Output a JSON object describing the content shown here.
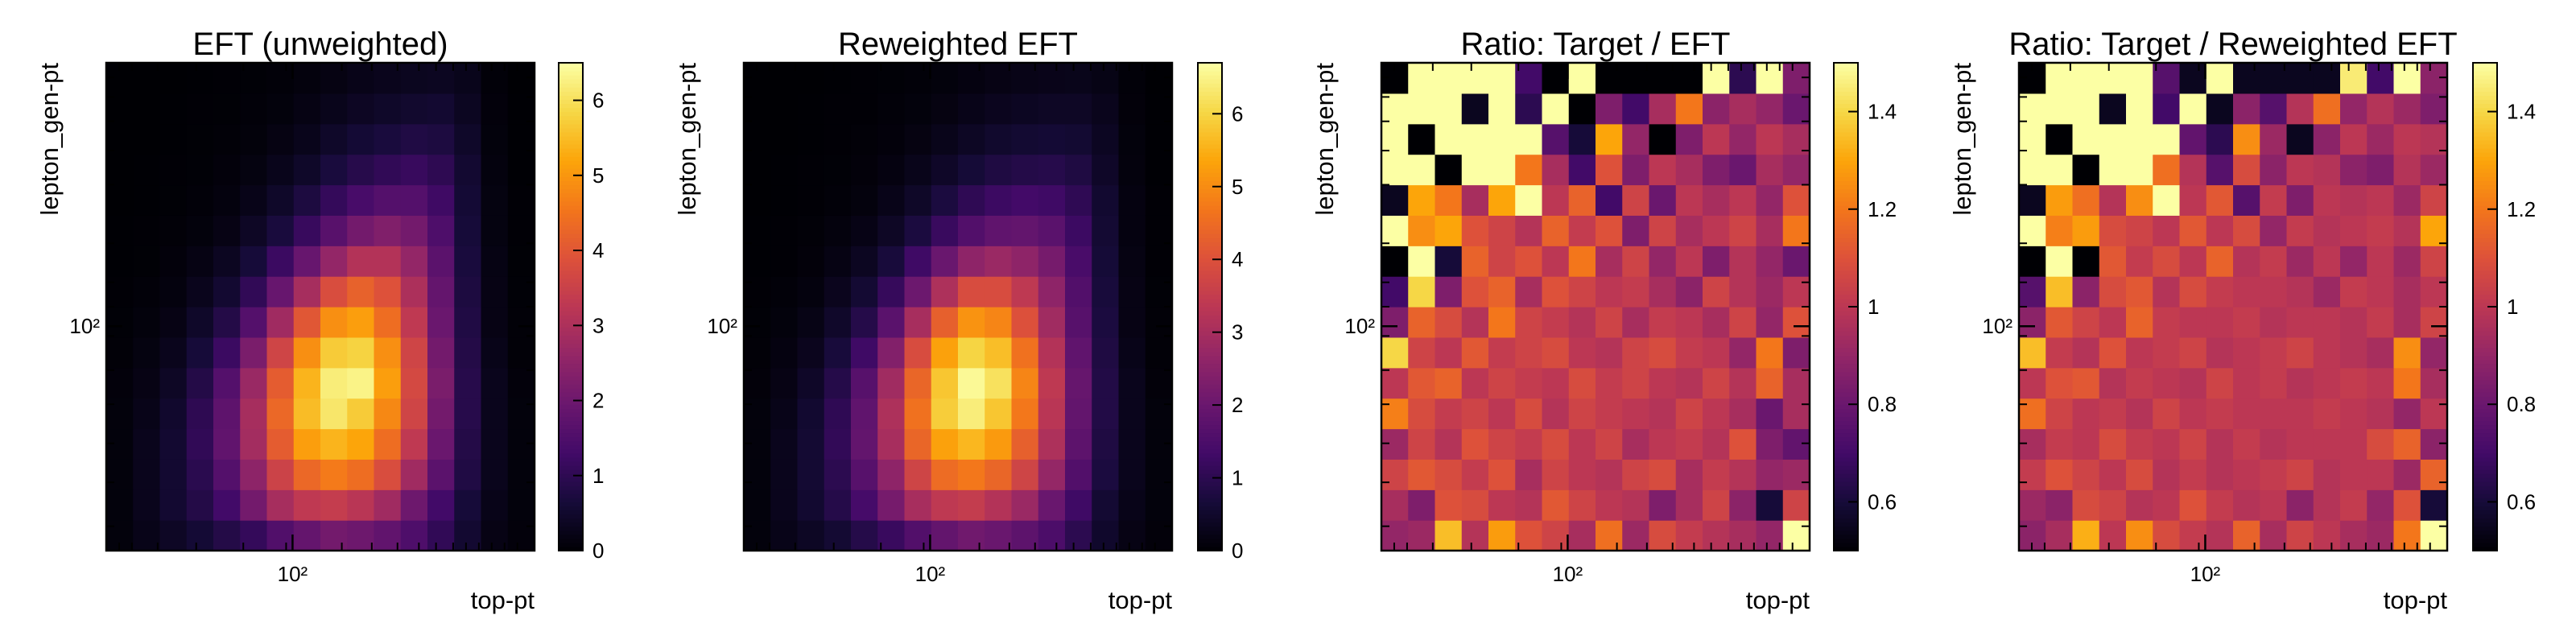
{
  "figure": {
    "axis_label_x": "top-pt",
    "axis_label_y": "lepton_gen-pt",
    "tick_label": "10²"
  },
  "chart_data": [
    {
      "type": "heatmap",
      "title": "EFT (unweighted)",
      "xlabel": "top-pt",
      "ylabel": "lepton_gen-pt",
      "xscale": "log",
      "yscale": "log",
      "x_tick_labels": [
        "10²"
      ],
      "y_tick_labels": [
        "10²"
      ],
      "colormap": "inferno",
      "colorbar_range": [
        0,
        6.5
      ],
      "colorbar_ticks": [
        0,
        1,
        2,
        3,
        4,
        5,
        6
      ],
      "grid": false,
      "legend": "none",
      "bins": [
        16,
        16
      ],
      "values": [
        [
          0.1,
          0.25,
          0.4,
          0.6,
          0.85,
          1.1,
          1.55,
          1.85,
          2.1,
          2.0,
          1.8,
          1.5,
          1.05,
          0.55,
          0.2,
          0.08
        ],
        [
          0.1,
          0.3,
          0.55,
          0.85,
          1.3,
          2.1,
          2.9,
          3.3,
          3.4,
          3.2,
          2.8,
          2.0,
          1.3,
          0.65,
          0.25,
          0.1
        ],
        [
          0.1,
          0.3,
          0.55,
          0.95,
          1.6,
          2.5,
          3.55,
          4.3,
          4.6,
          4.4,
          3.8,
          2.8,
          1.7,
          0.8,
          0.3,
          0.1
        ],
        [
          0.1,
          0.3,
          0.55,
          1.05,
          1.8,
          2.85,
          4.1,
          5.1,
          5.4,
          5.2,
          4.4,
          3.3,
          1.95,
          0.85,
          0.3,
          0.1
        ],
        [
          0.1,
          0.25,
          0.5,
          1.0,
          1.75,
          2.9,
          4.3,
          5.5,
          6.1,
          5.7,
          4.8,
          3.6,
          2.1,
          0.9,
          0.3,
          0.1
        ],
        [
          0.08,
          0.2,
          0.4,
          0.85,
          1.6,
          2.7,
          4.1,
          5.4,
          6.2,
          6.3,
          5.1,
          3.7,
          2.2,
          0.9,
          0.3,
          0.08
        ],
        [
          0.05,
          0.15,
          0.3,
          0.65,
          1.2,
          2.2,
          3.6,
          4.9,
          5.7,
          5.8,
          4.9,
          3.6,
          2.1,
          0.85,
          0.25,
          0.05
        ],
        [
          0.04,
          0.1,
          0.2,
          0.45,
          0.85,
          1.6,
          2.8,
          4.0,
          4.9,
          5.1,
          4.4,
          3.3,
          1.95,
          0.8,
          0.2,
          0.05
        ],
        [
          0.02,
          0.06,
          0.12,
          0.3,
          0.55,
          1.05,
          1.9,
          2.9,
          3.8,
          4.2,
          3.9,
          3.0,
          1.85,
          0.75,
          0.2,
          0.04
        ],
        [
          0.01,
          0.03,
          0.08,
          0.18,
          0.35,
          0.65,
          1.2,
          1.9,
          2.6,
          3.1,
          3.1,
          2.6,
          1.7,
          0.7,
          0.18,
          0.03
        ],
        [
          0.01,
          0.02,
          0.05,
          0.1,
          0.2,
          0.4,
          0.7,
          1.15,
          1.65,
          2.1,
          2.3,
          2.1,
          1.5,
          0.65,
          0.15,
          0.02
        ],
        [
          0.0,
          0.01,
          0.03,
          0.06,
          0.12,
          0.25,
          0.45,
          0.75,
          1.1,
          1.4,
          1.6,
          1.6,
          1.25,
          0.6,
          0.15,
          0.02
        ],
        [
          0.0,
          0.01,
          0.02,
          0.04,
          0.08,
          0.15,
          0.28,
          0.45,
          0.7,
          0.9,
          1.05,
          1.15,
          1.0,
          0.55,
          0.12,
          0.01
        ],
        [
          0.0,
          0.0,
          0.01,
          0.03,
          0.05,
          0.09,
          0.17,
          0.28,
          0.45,
          0.6,
          0.7,
          0.8,
          0.75,
          0.45,
          0.1,
          0.01
        ],
        [
          0.0,
          0.0,
          0.01,
          0.02,
          0.03,
          0.06,
          0.1,
          0.18,
          0.28,
          0.38,
          0.45,
          0.52,
          0.55,
          0.35,
          0.08,
          0.01
        ],
        [
          0.0,
          0.0,
          0.0,
          0.01,
          0.02,
          0.04,
          0.06,
          0.11,
          0.17,
          0.24,
          0.29,
          0.33,
          0.35,
          0.28,
          0.06,
          0.0
        ]
      ]
    },
    {
      "type": "heatmap",
      "title": "Reweighted EFT",
      "xlabel": "top-pt",
      "ylabel": "lepton_gen-pt",
      "xscale": "log",
      "yscale": "log",
      "x_tick_labels": [
        "10²"
      ],
      "y_tick_labels": [
        "10²"
      ],
      "colormap": "inferno",
      "colorbar_range": [
        0,
        6.7
      ],
      "colorbar_ticks": [
        0,
        1,
        2,
        3,
        4,
        5,
        6
      ],
      "grid": false,
      "legend": "none",
      "bins": [
        16,
        16
      ],
      "values": [
        [
          0.1,
          0.25,
          0.4,
          0.6,
          0.9,
          1.2,
          1.6,
          1.9,
          2.1,
          2.0,
          1.8,
          1.5,
          1.0,
          0.5,
          0.2,
          0.08
        ],
        [
          0.1,
          0.3,
          0.55,
          0.9,
          1.4,
          2.2,
          3.0,
          3.4,
          3.5,
          3.2,
          2.8,
          2.0,
          1.3,
          0.6,
          0.25,
          0.1
        ],
        [
          0.1,
          0.3,
          0.6,
          1.0,
          1.7,
          2.6,
          3.7,
          4.5,
          4.7,
          4.4,
          3.7,
          2.7,
          1.6,
          0.75,
          0.3,
          0.1
        ],
        [
          0.1,
          0.3,
          0.6,
          1.1,
          1.9,
          3.0,
          4.4,
          5.3,
          5.6,
          5.2,
          4.3,
          3.1,
          1.8,
          0.8,
          0.3,
          0.1
        ],
        [
          0.1,
          0.25,
          0.55,
          1.05,
          1.85,
          3.1,
          4.6,
          5.9,
          6.4,
          5.8,
          4.7,
          3.3,
          1.9,
          0.85,
          0.3,
          0.1
        ],
        [
          0.08,
          0.2,
          0.45,
          0.9,
          1.7,
          2.9,
          4.4,
          5.8,
          6.6,
          6.2,
          4.9,
          3.4,
          1.95,
          0.85,
          0.3,
          0.08
        ],
        [
          0.05,
          0.15,
          0.32,
          0.7,
          1.3,
          2.4,
          3.9,
          5.3,
          6.0,
          5.7,
          4.6,
          3.2,
          1.85,
          0.8,
          0.25,
          0.05
        ],
        [
          0.04,
          0.1,
          0.22,
          0.48,
          0.9,
          1.75,
          3.0,
          4.3,
          5.1,
          4.9,
          4.0,
          2.9,
          1.7,
          0.75,
          0.2,
          0.05
        ],
        [
          0.02,
          0.06,
          0.13,
          0.32,
          0.6,
          1.15,
          2.05,
          3.1,
          3.9,
          3.9,
          3.4,
          2.6,
          1.6,
          0.7,
          0.2,
          0.04
        ],
        [
          0.01,
          0.03,
          0.08,
          0.19,
          0.37,
          0.7,
          1.3,
          2.0,
          2.6,
          2.8,
          2.6,
          2.2,
          1.45,
          0.65,
          0.18,
          0.03
        ],
        [
          0.01,
          0.02,
          0.05,
          0.11,
          0.21,
          0.42,
          0.75,
          1.2,
          1.6,
          1.85,
          1.9,
          1.75,
          1.25,
          0.6,
          0.15,
          0.02
        ],
        [
          0.0,
          0.01,
          0.03,
          0.06,
          0.12,
          0.25,
          0.46,
          0.75,
          1.05,
          1.25,
          1.35,
          1.3,
          1.05,
          0.55,
          0.15,
          0.02
        ],
        [
          0.0,
          0.01,
          0.02,
          0.04,
          0.08,
          0.15,
          0.28,
          0.45,
          0.65,
          0.8,
          0.88,
          0.92,
          0.8,
          0.45,
          0.12,
          0.01
        ],
        [
          0.0,
          0.0,
          0.01,
          0.03,
          0.05,
          0.09,
          0.17,
          0.28,
          0.4,
          0.52,
          0.58,
          0.62,
          0.58,
          0.38,
          0.1,
          0.01
        ],
        [
          0.0,
          0.0,
          0.01,
          0.02,
          0.03,
          0.06,
          0.1,
          0.17,
          0.25,
          0.33,
          0.38,
          0.42,
          0.42,
          0.3,
          0.08,
          0.01
        ],
        [
          0.0,
          0.0,
          0.0,
          0.01,
          0.02,
          0.04,
          0.06,
          0.1,
          0.15,
          0.2,
          0.24,
          0.27,
          0.28,
          0.22,
          0.06,
          0.0
        ]
      ]
    },
    {
      "type": "heatmap",
      "title": "Ratio: Target / EFT",
      "xlabel": "top-pt",
      "ylabel": "lepton_gen-pt",
      "xscale": "log",
      "yscale": "log",
      "x_tick_labels": [
        "10²"
      ],
      "y_tick_labels": [
        "10²"
      ],
      "colormap": "inferno",
      "colorbar_range": [
        0.5,
        1.5
      ],
      "colorbar_ticks": [
        0.6,
        0.8,
        1.0,
        1.2,
        1.4
      ],
      "grid": false,
      "legend": "none",
      "bins": [
        16,
        16
      ],
      "values": [
        [
          0.9,
          0.92,
          1.35,
          0.98,
          1.28,
          1.1,
          1.05,
          0.95,
          1.18,
          0.92,
          1.08,
          1.02,
          0.98,
          0.95,
          0.9,
          1.55
        ],
        [
          0.95,
          0.85,
          1.1,
          1.08,
          1.0,
          0.98,
          1.12,
          1.05,
          1.0,
          0.98,
          0.85,
          0.95,
          1.05,
          0.88,
          0.6,
          1.05
        ],
        [
          1.05,
          1.12,
          1.08,
          1.02,
          1.1,
          0.95,
          1.05,
          1.0,
          0.98,
          1.05,
          1.08,
          0.95,
          1.02,
          0.98,
          0.9,
          0.92
        ],
        [
          0.92,
          1.05,
          0.98,
          1.1,
          1.05,
          1.02,
          1.08,
          1.0,
          1.05,
          0.95,
          1.0,
          1.02,
          0.98,
          1.1,
          0.85,
          0.78
        ],
        [
          1.22,
          1.08,
          1.02,
          1.05,
          1.0,
          1.08,
          0.98,
          1.05,
          1.02,
          1.0,
          0.98,
          1.05,
          1.0,
          0.95,
          0.8,
          0.95
        ],
        [
          1.0,
          1.12,
          1.15,
          1.0,
          1.05,
          1.02,
          1.0,
          1.08,
          1.02,
          1.05,
          1.0,
          0.98,
          1.05,
          0.98,
          1.15,
          0.95
        ],
        [
          1.4,
          1.05,
          1.0,
          1.12,
          1.02,
          1.05,
          1.08,
          1.0,
          0.98,
          1.05,
          1.08,
          1.02,
          1.0,
          0.9,
          1.2,
          0.85
        ],
        [
          0.85,
          1.15,
          1.08,
          0.98,
          1.2,
          1.05,
          1.02,
          0.98,
          1.05,
          0.95,
          1.02,
          1.0,
          0.95,
          1.05,
          0.9,
          1.1
        ],
        [
          0.7,
          1.4,
          0.85,
          1.1,
          1.15,
          0.95,
          1.1,
          1.05,
          1.0,
          1.02,
          0.95,
          0.88,
          1.05,
          0.98,
          0.92,
          1.0
        ],
        [
          0.5,
          1.5,
          0.6,
          1.15,
          1.05,
          1.1,
          1.0,
          1.2,
          0.95,
          1.05,
          0.9,
          1.0,
          0.85,
          0.98,
          0.9,
          0.8
        ],
        [
          1.5,
          1.25,
          1.3,
          1.1,
          1.05,
          0.98,
          1.15,
          1.02,
          1.1,
          0.85,
          1.05,
          0.95,
          1.0,
          1.05,
          0.95,
          1.2
        ],
        [
          0.55,
          1.3,
          1.2,
          0.95,
          1.3,
          1.55,
          1.0,
          1.15,
          0.7,
          1.05,
          0.8,
          1.0,
          0.95,
          1.0,
          0.9,
          1.1
        ],
        [
          1.55,
          1.55,
          0.5,
          1.55,
          1.55,
          1.2,
          0.95,
          0.7,
          1.1,
          0.85,
          1.0,
          0.95,
          0.85,
          0.8,
          0.95,
          0.9
        ],
        [
          1.55,
          0.5,
          1.55,
          1.55,
          1.55,
          1.55,
          0.75,
          0.6,
          1.3,
          0.9,
          0.5,
          0.85,
          1.0,
          0.9,
          1.0,
          0.95
        ],
        [
          1.55,
          1.55,
          1.55,
          0.55,
          1.55,
          0.65,
          1.55,
          0.5,
          0.85,
          0.7,
          0.95,
          1.2,
          0.88,
          0.95,
          0.9,
          0.8
        ],
        [
          0.5,
          1.55,
          1.55,
          1.55,
          1.55,
          0.7,
          0.5,
          1.55,
          0.5,
          0.5,
          0.5,
          0.5,
          1.5,
          0.65,
          1.55,
          0.85
        ]
      ]
    },
    {
      "type": "heatmap",
      "title": "Ratio: Target / Reweighted EFT",
      "xlabel": "top-pt",
      "ylabel": "lepton_gen-pt",
      "xscale": "log",
      "yscale": "log",
      "x_tick_labels": [
        "10²"
      ],
      "y_tick_labels": [
        "10²"
      ],
      "colormap": "inferno",
      "colorbar_range": [
        0.5,
        1.5
      ],
      "colorbar_ticks": [
        0.6,
        0.8,
        1.0,
        1.2,
        1.4
      ],
      "grid": false,
      "legend": "none",
      "bins": [
        16,
        16
      ],
      "values": [
        [
          0.88,
          0.95,
          1.32,
          1.0,
          1.25,
          1.08,
          1.02,
          0.98,
          1.15,
          0.95,
          1.05,
          1.0,
          0.95,
          0.92,
          1.2,
          1.5
        ],
        [
          0.92,
          0.88,
          1.08,
          1.05,
          0.98,
          1.0,
          1.1,
          1.02,
          0.98,
          1.0,
          0.88,
          0.98,
          1.02,
          0.9,
          1.1,
          0.6
        ],
        [
          1.02,
          1.1,
          1.05,
          1.0,
          1.08,
          0.98,
          1.02,
          0.98,
          1.0,
          1.02,
          1.05,
          0.98,
          1.0,
          1.0,
          0.92,
          1.15
        ],
        [
          0.95,
          1.02,
          1.0,
          1.08,
          1.02,
          1.0,
          1.05,
          0.98,
          1.02,
          0.98,
          1.0,
          1.0,
          1.0,
          1.08,
          1.15,
          0.88
        ],
        [
          1.18,
          1.05,
          1.0,
          1.02,
          0.98,
          1.05,
          1.0,
          1.02,
          1.0,
          1.0,
          1.0,
          1.02,
          1.0,
          0.98,
          0.9,
          1.0
        ],
        [
          1.0,
          1.1,
          1.12,
          0.98,
          1.02,
          1.0,
          0.98,
          1.05,
          1.0,
          1.02,
          0.98,
          1.0,
          1.02,
          1.0,
          1.2,
          0.95
        ],
        [
          1.35,
          1.02,
          0.98,
          1.1,
          1.0,
          1.02,
          1.05,
          0.98,
          1.0,
          1.02,
          1.05,
          1.0,
          0.98,
          0.95,
          1.25,
          0.9
        ],
        [
          0.88,
          1.12,
          1.05,
          1.0,
          1.15,
          1.02,
          1.0,
          1.0,
          1.02,
          0.98,
          1.0,
          1.0,
          0.98,
          1.02,
          0.95,
          1.05
        ],
        [
          0.75,
          1.35,
          0.88,
          1.08,
          1.12,
          0.98,
          1.08,
          1.02,
          1.0,
          1.0,
          0.98,
          0.92,
          1.02,
          1.0,
          0.95,
          1.0
        ],
        [
          0.5,
          1.5,
          0.5,
          1.12,
          1.02,
          1.08,
          1.0,
          1.15,
          0.98,
          1.02,
          0.92,
          1.0,
          0.9,
          1.0,
          0.92,
          1.05
        ],
        [
          1.5,
          1.22,
          1.28,
          1.08,
          1.05,
          1.0,
          1.12,
          1.0,
          1.08,
          0.9,
          1.02,
          0.98,
          1.0,
          1.02,
          0.98,
          1.3
        ],
        [
          0.55,
          1.28,
          1.18,
          0.98,
          1.25,
          1.5,
          1.0,
          1.12,
          0.75,
          1.02,
          0.85,
          1.0,
          0.98,
          1.0,
          0.92,
          1.05
        ],
        [
          1.55,
          1.55,
          0.5,
          1.5,
          1.5,
          1.18,
          0.98,
          0.75,
          1.08,
          0.88,
          1.0,
          0.98,
          0.88,
          0.85,
          0.98,
          0.92
        ],
        [
          1.55,
          0.5,
          1.55,
          1.55,
          1.55,
          1.5,
          0.78,
          0.65,
          1.25,
          0.92,
          0.55,
          0.88,
          1.0,
          0.92,
          1.0,
          0.98
        ],
        [
          1.55,
          1.55,
          1.55,
          0.55,
          1.55,
          0.7,
          1.5,
          0.55,
          0.88,
          0.75,
          0.98,
          1.18,
          0.9,
          0.98,
          0.92,
          0.85
        ],
        [
          0.5,
          1.55,
          1.55,
          1.55,
          1.55,
          0.75,
          0.55,
          1.55,
          0.55,
          0.55,
          0.55,
          0.55,
          1.45,
          0.7,
          1.55,
          0.88
        ]
      ]
    }
  ]
}
